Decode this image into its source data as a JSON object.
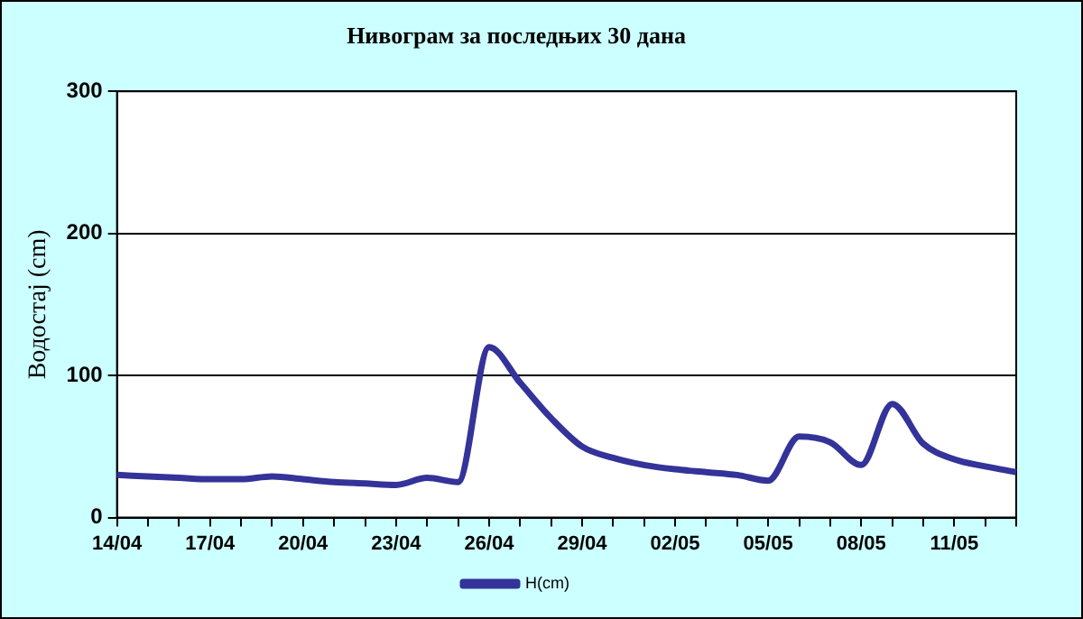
{
  "chart_data": {
    "type": "line",
    "title": "Нивограм за последњих 30 дана",
    "ylabel": "Водостај (cm)",
    "categories": [
      "14/04",
      null,
      null,
      "17/04",
      null,
      null,
      "20/04",
      null,
      null,
      "23/04",
      null,
      null,
      "26/04",
      null,
      null,
      "29/04",
      null,
      null,
      "02/05",
      null,
      null,
      "05/05",
      null,
      null,
      "08/05",
      null,
      null,
      "11/05",
      null,
      null
    ],
    "series": [
      {
        "name": "H(cm)",
        "color": "#333399",
        "values": [
          30,
          29,
          28,
          27,
          27,
          29,
          27,
          25,
          24,
          23,
          28,
          25,
          120,
          95,
          70,
          50,
          42,
          37,
          34,
          32,
          30,
          26,
          57,
          53,
          37,
          80,
          52,
          41,
          36,
          32
        ]
      }
    ],
    "ylim": [
      0,
      300
    ],
    "yticks": [
      0,
      100,
      200,
      300
    ],
    "grid": "y",
    "legend": "bottom",
    "marker": "none",
    "line_style": "solid"
  }
}
